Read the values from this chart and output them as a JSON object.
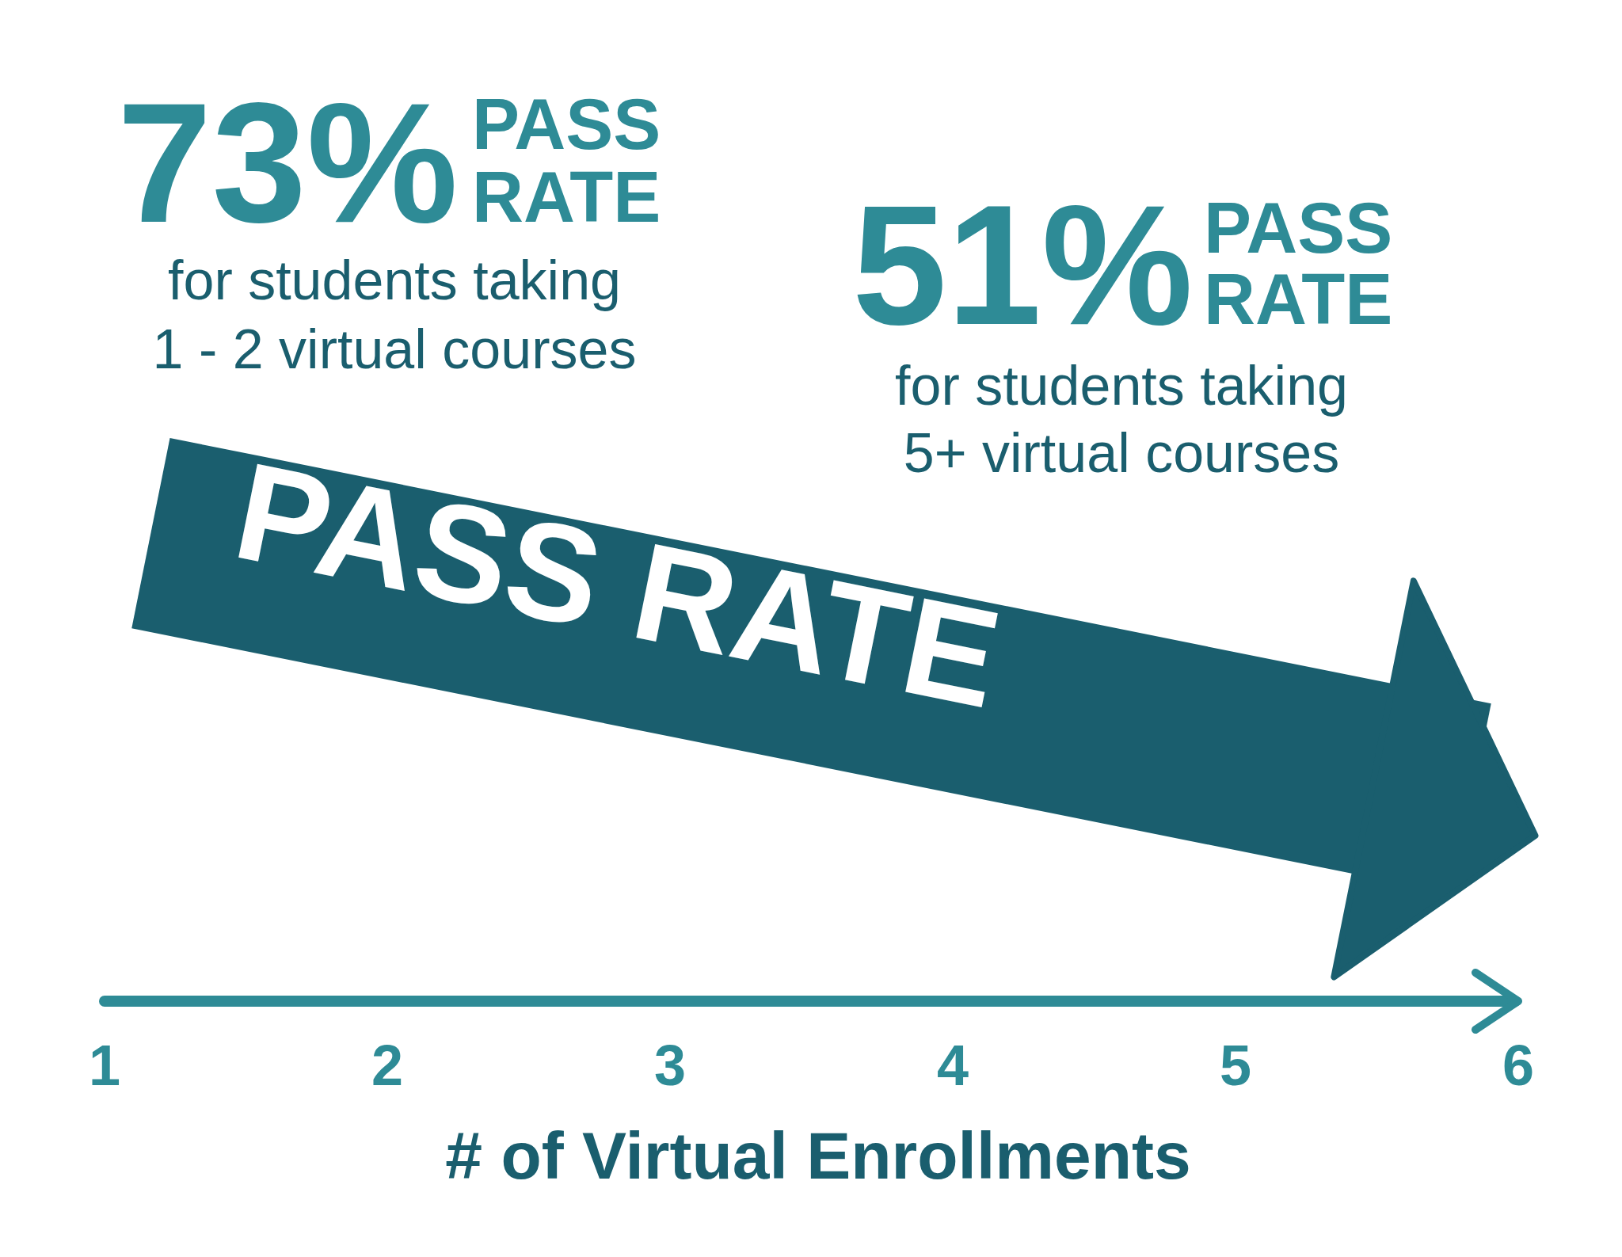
{
  "chart_data": {
    "type": "line",
    "x": [
      1.5,
      5.5
    ],
    "values": [
      73,
      51
    ],
    "value_labels": [
      "73%",
      "51%"
    ],
    "color": "#1a5e6e",
    "xlabel": "# of Virtual Enrollments",
    "xlim": [
      1,
      6
    ],
    "xticks": [
      1,
      2,
      3,
      4,
      5,
      6
    ],
    "tick_labels": "x",
    "annotations": [
      "PASS",
      "RATE",
      "for students taking",
      "1 - 2  virtual courses",
      "PASS",
      "RATE",
      "for students taking",
      "5+ virtual courses",
      "PASS RATE"
    ]
  }
}
